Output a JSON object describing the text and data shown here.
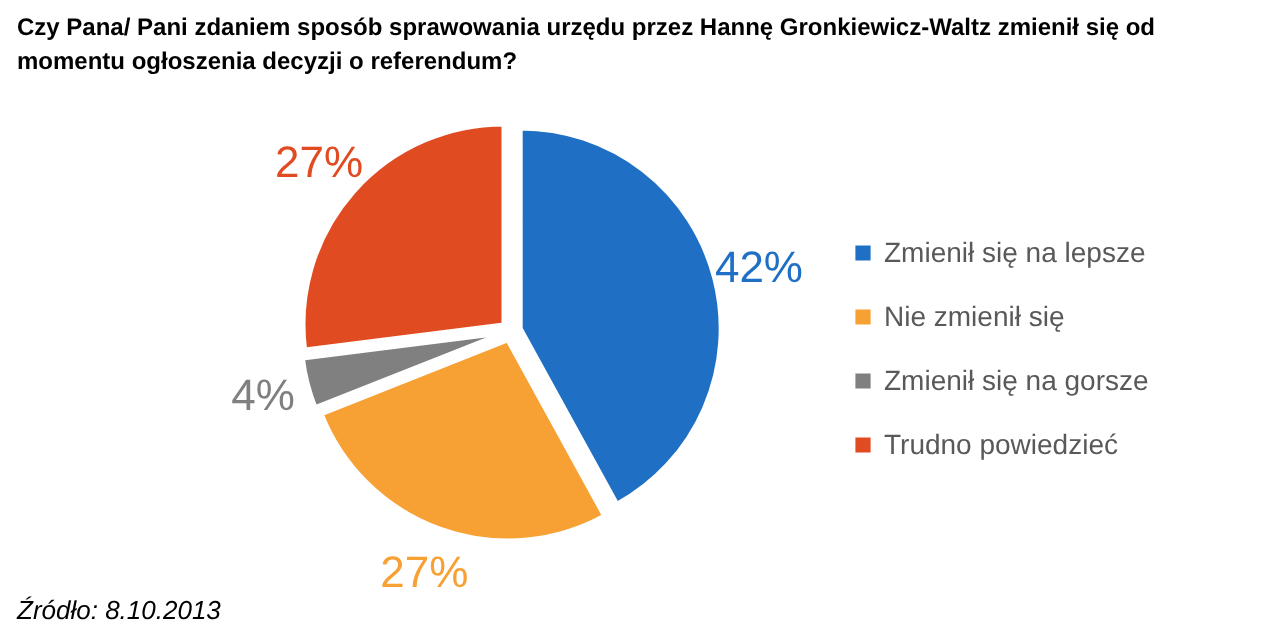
{
  "chart_data": {
    "type": "pie",
    "title": "Czy Pana/ Pani zdaniem sposób sprawowania urzędu przez Hannę Gronkiewicz-Waltz zmienił się od momentu ogłoszenia decyzji o referendum?",
    "categories": [
      "Zmienił się na lepsze",
      "Nie zmienił się",
      "Zmienił się na gorsze",
      "Trudno powiedzieć"
    ],
    "values": [
      42,
      27,
      4,
      27
    ],
    "value_labels": [
      "42%",
      "27%",
      "4%",
      "27%"
    ],
    "colors": [
      "#1f6fc5",
      "#f7a033",
      "#808080",
      "#e04b22"
    ],
    "legend": "right",
    "annotations": [
      "Źródło: 8.10.2013"
    ]
  }
}
